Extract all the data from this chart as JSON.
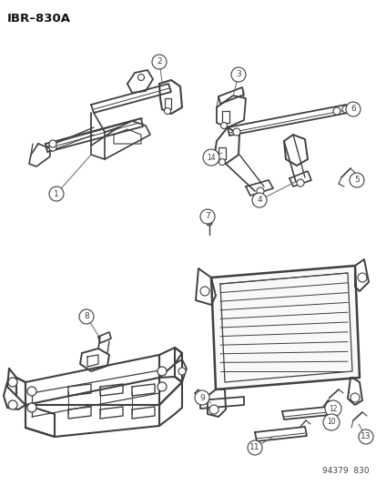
{
  "title": "IBR–830A",
  "footer": "94379  830",
  "bg_color": "#ffffff",
  "lc": "#404040",
  "lc_thin": "#555555",
  "fig_width": 4.14,
  "fig_height": 5.33,
  "dpi": 100
}
